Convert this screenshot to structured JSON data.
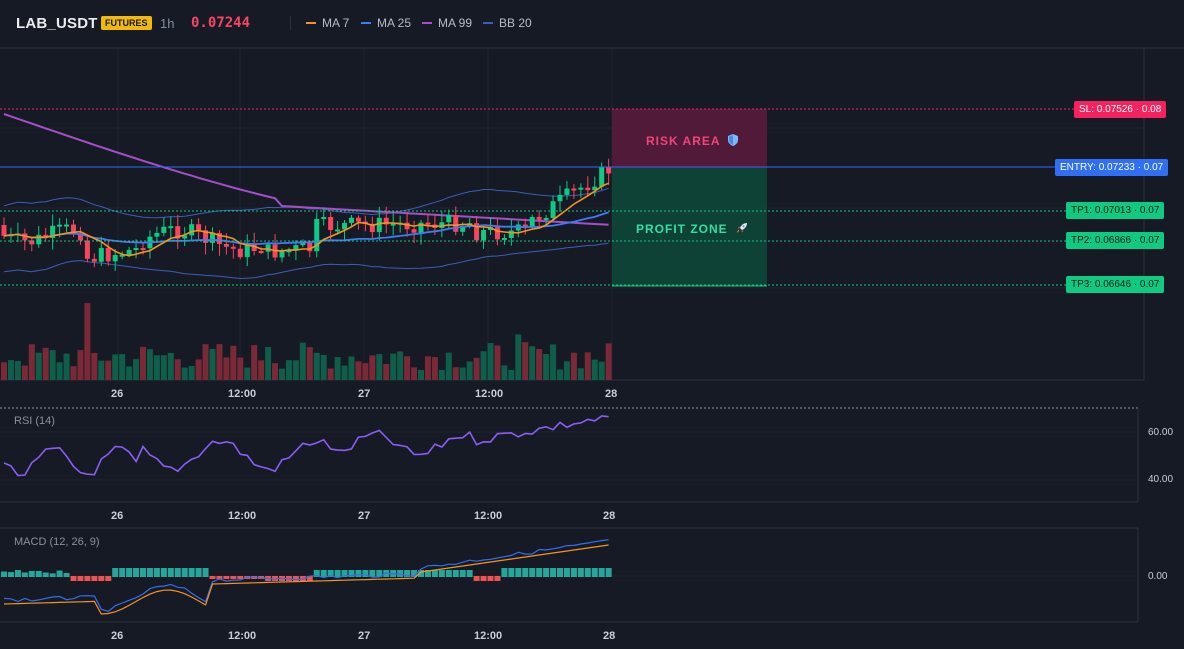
{
  "header": {
    "symbol": "LAB_USDT",
    "badge": "FUTURES",
    "interval": "1h",
    "price": "0.07244",
    "indicators": [
      {
        "label": "MA 7",
        "color": "#f7931a"
      },
      {
        "label": "MA 25",
        "color": "#3d7bfd"
      },
      {
        "label": "MA 99",
        "color": "#a54ec9"
      },
      {
        "label": "BB 20",
        "color": "#3b5fb8"
      }
    ]
  },
  "levels": {
    "sl": "SL: 0.07526 · 0.08",
    "entry": "ENTRY: 0.07233 · 0.07",
    "tp1": "TP1: 0.07013 · 0.07",
    "tp2": "TP2: 0.06866 · 0.07",
    "tp3": "TP3: 0.06646 · 0.07"
  },
  "zones": {
    "risk": "RISK AREA",
    "risk_icon": "shield-icon",
    "profit": "PROFIT ZONE",
    "profit_icon": "rocket-icon"
  },
  "time_axis": [
    "26",
    "12:00",
    "27",
    "12:00",
    "28"
  ],
  "rsi": {
    "title": "RSI (14)",
    "ticks": [
      "60.00",
      "40.00"
    ]
  },
  "macd": {
    "title": "MACD (12, 26, 9)",
    "ticks": [
      "0.00"
    ]
  },
  "colors": {
    "up": "#0ecb81",
    "down": "#f6465d",
    "background": "#161a25",
    "sl_line": "#f6225d",
    "entry_line": "#2f6ff6",
    "tp_line": "#0ecb81",
    "rsi_line": "#8b5cf6",
    "macd_line": "#2f6ff6",
    "signal_line": "#f7931a"
  }
}
